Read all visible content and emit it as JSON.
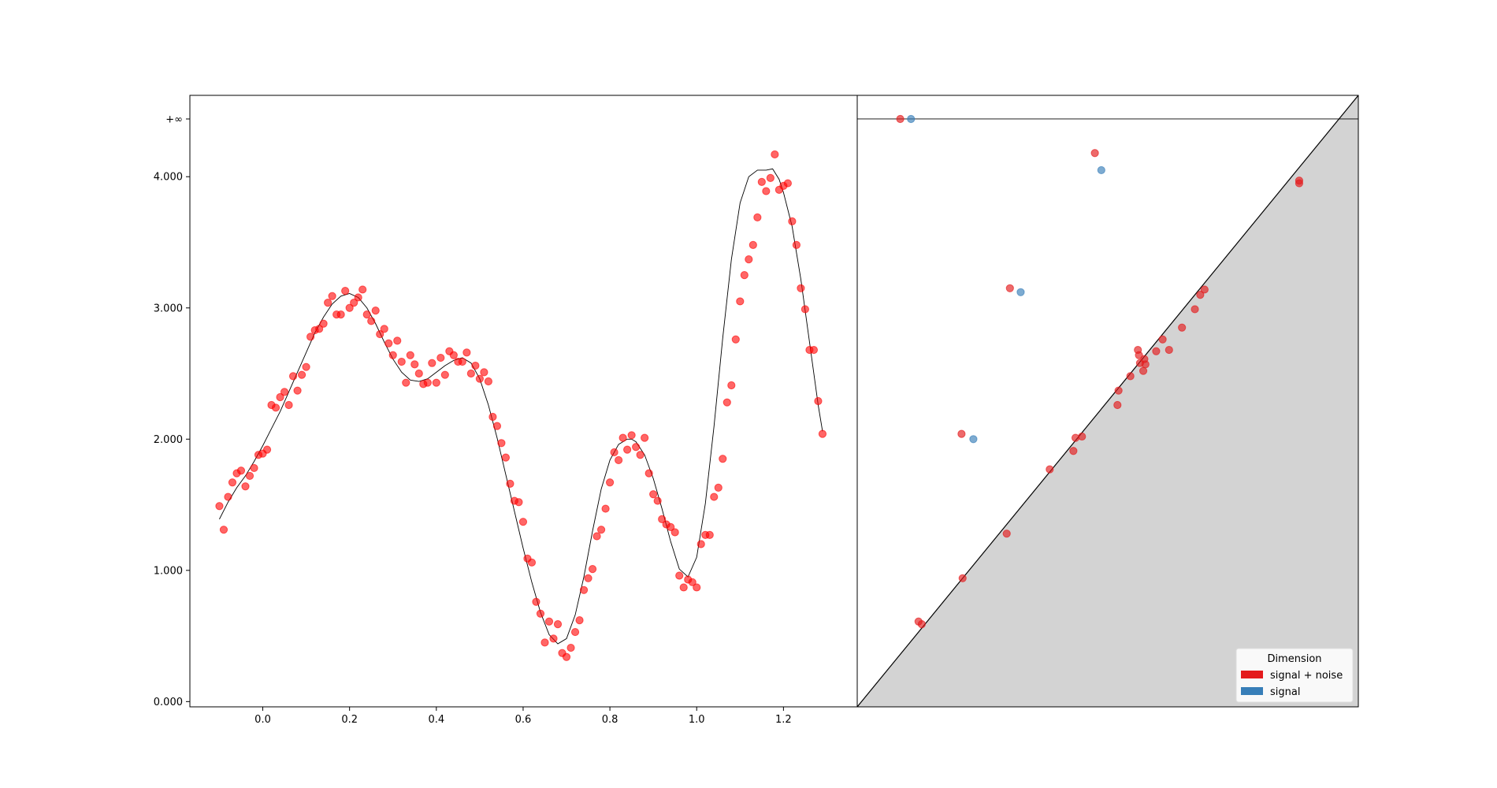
{
  "chart_data": [
    {
      "type": "scatter",
      "title": "",
      "xlabel": "",
      "ylabel": "",
      "xlim": [
        -0.168,
        1.37
      ],
      "ylim": [
        -0.04,
        4.62
      ],
      "x_ticks": [
        0.0,
        0.2,
        0.4,
        0.6,
        0.8,
        1.0,
        1.2
      ],
      "x_tick_labels": [
        "0.0",
        "0.2",
        "0.4",
        "0.6",
        "0.8",
        "1.0",
        "1.2"
      ],
      "y_ticks": [
        0.0,
        1.0,
        2.0,
        3.0,
        4.0,
        4.44
      ],
      "y_tick_labels": [
        "0.000",
        "1.000",
        "2.000",
        "3.000",
        "4.000",
        "+∞"
      ],
      "grid": false,
      "series": [
        {
          "role": "noisy-points",
          "color": "#ff0000",
          "x": [
            -0.1,
            -0.09,
            -0.08,
            -0.07,
            -0.06,
            -0.05,
            -0.04,
            -0.03,
            -0.02,
            -0.01,
            0.0,
            0.01,
            0.02,
            0.03,
            0.04,
            0.05,
            0.06,
            0.07,
            0.08,
            0.09,
            0.1,
            0.11,
            0.12,
            0.13,
            0.14,
            0.15,
            0.16,
            0.17,
            0.18,
            0.19,
            0.2,
            0.21,
            0.22,
            0.23,
            0.24,
            0.25,
            0.26,
            0.27,
            0.28,
            0.29,
            0.3,
            0.31,
            0.32,
            0.33,
            0.34,
            0.35,
            0.36,
            0.37,
            0.38,
            0.39,
            0.4,
            0.41,
            0.42,
            0.43,
            0.44,
            0.45,
            0.46,
            0.47,
            0.48,
            0.49,
            0.5,
            0.51,
            0.52,
            0.53,
            0.54,
            0.55,
            0.56,
            0.57,
            0.58,
            0.59,
            0.6,
            0.61,
            0.62,
            0.63,
            0.64,
            0.65,
            0.66,
            0.67,
            0.68,
            0.69,
            0.7,
            0.71,
            0.72,
            0.73,
            0.74,
            0.75,
            0.76,
            0.77,
            0.78,
            0.79,
            0.8,
            0.81,
            0.82,
            0.83,
            0.84,
            0.85,
            0.86,
            0.87,
            0.88,
            0.89,
            0.9,
            0.91,
            0.92,
            0.93,
            0.94,
            0.95,
            0.96,
            0.97,
            0.98,
            0.99,
            1.0,
            1.01,
            1.02,
            1.03,
            1.04,
            1.05,
            1.06,
            1.07,
            1.08,
            1.09,
            1.1,
            1.11,
            1.12,
            1.13,
            1.14,
            1.15,
            1.16,
            1.17,
            1.18,
            1.19,
            1.2,
            1.21,
            1.22,
            1.23,
            1.24,
            1.25,
            1.26,
            1.27,
            1.28,
            1.29
          ],
          "y": [
            1.49,
            1.31,
            1.56,
            1.67,
            1.74,
            1.76,
            1.64,
            1.72,
            1.78,
            1.88,
            1.89,
            1.92,
            2.26,
            2.24,
            2.32,
            2.36,
            2.26,
            2.48,
            2.37,
            2.49,
            2.55,
            2.78,
            2.83,
            2.84,
            2.88,
            3.04,
            3.09,
            2.95,
            2.95,
            3.13,
            3.0,
            3.04,
            3.08,
            3.14,
            2.95,
            2.9,
            2.98,
            2.8,
            2.84,
            2.73,
            2.64,
            2.75,
            2.59,
            2.43,
            2.64,
            2.57,
            2.5,
            2.42,
            2.43,
            2.58,
            2.43,
            2.62,
            2.49,
            2.67,
            2.64,
            2.59,
            2.59,
            2.66,
            2.5,
            2.56,
            2.46,
            2.51,
            2.44,
            2.17,
            2.1,
            1.97,
            1.86,
            1.66,
            1.53,
            1.52,
            1.37,
            1.09,
            1.06,
            0.76,
            0.67,
            0.45,
            0.61,
            0.48,
            0.59,
            0.37,
            0.34,
            0.41,
            0.53,
            0.62,
            0.85,
            0.94,
            1.01,
            1.26,
            1.31,
            1.47,
            1.67,
            1.9,
            1.84,
            2.01,
            1.92,
            2.03,
            1.94,
            1.88,
            2.01,
            1.74,
            1.58,
            1.53,
            1.39,
            1.35,
            1.33,
            1.29,
            0.96,
            0.87,
            0.93,
            0.91,
            0.87,
            1.2,
            1.27,
            1.27,
            1.56,
            1.63,
            1.85,
            2.28,
            2.41,
            2.76,
            3.05,
            3.25,
            3.37,
            3.48,
            3.69,
            3.96,
            3.89,
            3.99,
            4.17,
            3.9,
            3.93,
            3.95,
            3.66,
            3.48,
            3.15,
            2.99,
            2.68,
            2.68,
            2.29,
            2.04
          ]
        },
        {
          "role": "smooth-signal-curve",
          "color": "#000000",
          "x": [
            -0.1,
            -0.08,
            -0.06,
            -0.04,
            -0.02,
            0.0,
            0.02,
            0.04,
            0.06,
            0.08,
            0.1,
            0.12,
            0.14,
            0.16,
            0.18,
            0.2,
            0.22,
            0.24,
            0.26,
            0.28,
            0.3,
            0.32,
            0.34,
            0.36,
            0.38,
            0.4,
            0.42,
            0.44,
            0.46,
            0.48,
            0.5,
            0.52,
            0.54,
            0.56,
            0.58,
            0.6,
            0.62,
            0.64,
            0.66,
            0.68,
            0.7,
            0.72,
            0.74,
            0.76,
            0.78,
            0.8,
            0.82,
            0.84,
            0.85,
            0.86,
            0.88,
            0.9,
            0.92,
            0.94,
            0.96,
            0.98,
            1.0,
            1.02,
            1.04,
            1.06,
            1.08,
            1.1,
            1.12,
            1.14,
            1.16,
            1.175,
            1.19,
            1.2,
            1.22,
            1.24,
            1.26,
            1.28,
            1.29
          ],
          "y": [
            1.39,
            1.52,
            1.63,
            1.72,
            1.83,
            1.95,
            2.08,
            2.21,
            2.36,
            2.51,
            2.66,
            2.81,
            2.93,
            3.03,
            3.09,
            3.11,
            3.08,
            3.0,
            2.88,
            2.74,
            2.61,
            2.51,
            2.45,
            2.44,
            2.46,
            2.51,
            2.56,
            2.6,
            2.62,
            2.58,
            2.46,
            2.26,
            2.01,
            1.73,
            1.45,
            1.17,
            0.91,
            0.68,
            0.51,
            0.44,
            0.48,
            0.66,
            0.95,
            1.3,
            1.62,
            1.84,
            1.96,
            2.0,
            2.0,
            1.98,
            1.88,
            1.7,
            1.47,
            1.22,
            1.01,
            0.95,
            1.1,
            1.51,
            2.1,
            2.77,
            3.37,
            3.8,
            4.0,
            4.05,
            4.05,
            4.06,
            3.98,
            3.88,
            3.62,
            3.22,
            2.74,
            2.26,
            2.06
          ]
        }
      ]
    },
    {
      "type": "scatter",
      "title": "",
      "xlabel": "",
      "ylabel": "",
      "xlim": [
        -0.04,
        4.62
      ],
      "ylim": [
        -0.04,
        4.62
      ],
      "infinity_level": 4.44,
      "diagonal_fill_color": "#d3d3d3",
      "grid": false,
      "legend": {
        "title": "Dimension",
        "placement": "lower-right",
        "entries": [
          {
            "label": "signal + noise",
            "color": "#e41a1c"
          },
          {
            "label": "signal",
            "color": "#377eb8"
          }
        ]
      },
      "series": [
        {
          "name": "signal + noise",
          "color": "#e41a1c",
          "points": [
            [
              0.36,
              4.44
            ],
            [
              0.94,
              0.94
            ],
            [
              0.53,
              0.61
            ],
            [
              0.56,
              0.59
            ],
            [
              0.93,
              2.04
            ],
            [
              1.38,
              3.15
            ],
            [
              1.35,
              1.28
            ],
            [
              1.75,
              1.77
            ],
            [
              1.97,
              1.91
            ],
            [
              1.99,
              2.01
            ],
            [
              2.05,
              2.02
            ],
            [
              2.17,
              4.18
            ],
            [
              2.38,
              2.26
            ],
            [
              2.39,
              2.37
            ],
            [
              2.5,
              2.48
            ],
            [
              2.57,
              2.68
            ],
            [
              2.58,
              2.64
            ],
            [
              2.59,
              2.58
            ],
            [
              2.62,
              2.52
            ],
            [
              2.63,
              2.61
            ],
            [
              2.64,
              2.57
            ],
            [
              2.74,
              2.67
            ],
            [
              2.8,
              2.76
            ],
            [
              2.86,
              2.68
            ],
            [
              2.98,
              2.85
            ],
            [
              3.1,
              2.99
            ],
            [
              3.15,
              3.1
            ],
            [
              3.19,
              3.14
            ],
            [
              4.07,
              3.97
            ],
            [
              4.07,
              3.95
            ]
          ]
        },
        {
          "name": "signal",
          "color": "#377eb8",
          "points": [
            [
              0.46,
              4.44
            ],
            [
              1.04,
              2.0
            ],
            [
              1.48,
              3.12
            ],
            [
              2.23,
              4.05
            ]
          ]
        }
      ]
    }
  ]
}
